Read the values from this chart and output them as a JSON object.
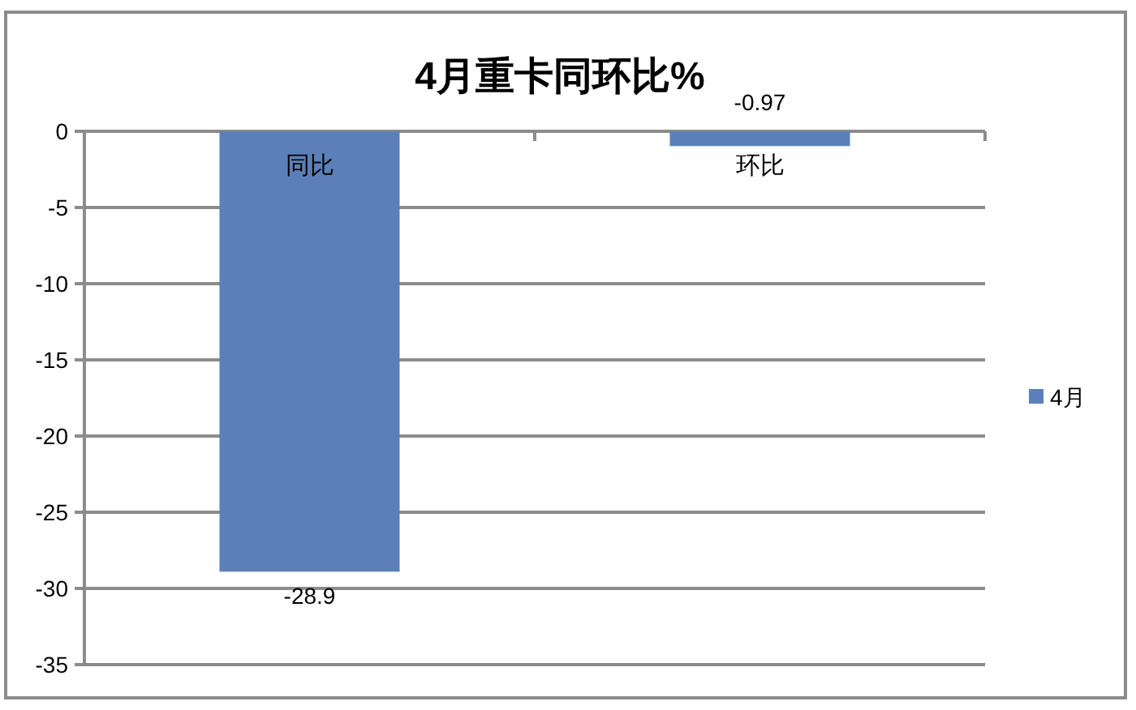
{
  "chart_data": {
    "type": "bar",
    "title": "4月重卡同环比%",
    "categories": [
      "同比",
      "环比"
    ],
    "series": [
      {
        "name": "4月",
        "color": "#5b80b9",
        "values": [
          -28.9,
          -0.97
        ]
      }
    ],
    "ylim": [
      -35,
      0
    ],
    "yticks": [
      0,
      -5,
      -10,
      -15,
      -20,
      -25,
      -30,
      -35
    ],
    "grid": "y",
    "legend": "right",
    "data_labels": true
  }
}
